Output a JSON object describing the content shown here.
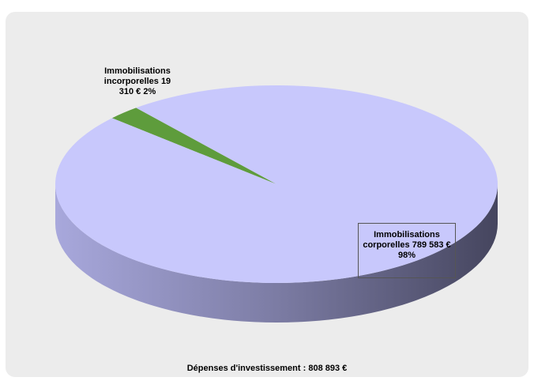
{
  "chart_data": {
    "type": "pie",
    "title": "Dépenses d'investissement : 808 893 €",
    "categories": [
      "Immobilisations incorporelles",
      "Immobilisations corporelles"
    ],
    "values": [
      19310,
      789583
    ],
    "value_labels": [
      "19 310 € 2%",
      "789 583 € 98%"
    ],
    "colors": [
      "#5e9c3c",
      "#c8c8fc"
    ]
  }
}
